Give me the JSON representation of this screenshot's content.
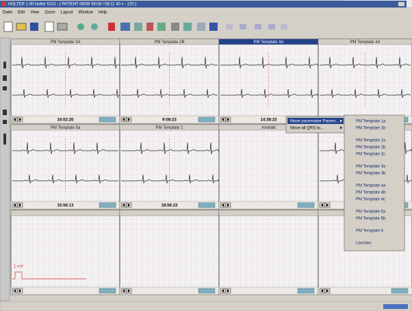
{
  "title_bar": "HOLTER 1.00 Holter ECG - [ PATIENT 08/08 09:08 / 08:11 40 s - 220 ]",
  "menu": [
    "Datei",
    "Edit",
    "View",
    "Zoom",
    "Layout",
    "Window",
    "Help"
  ],
  "selected_panel": 2,
  "panels": [
    {
      "title": "PM Template 3A",
      "time": "16:02:20"
    },
    {
      "title": "PM Template 2B",
      "time": "9:08:23"
    },
    {
      "title": "PM Template 3A",
      "time": "14:38:23"
    },
    {
      "title": "PM Template 4A"
    },
    {
      "title": "PM Template 5a",
      "time": "15:56:13"
    },
    {
      "title": "PM Template 1",
      "time": "18:56:23"
    },
    {
      "title": "Artefakt"
    }
  ],
  "calibration_label": "1 mV",
  "context_menu": [
    "Move pacemaker Pacem...",
    "Move all QRS to..."
  ],
  "submenu": [
    [
      "PM Template 1a",
      "PM Template 1b"
    ],
    [
      "PM Template 2a",
      "PM Template 2b",
      "PM Template 2c"
    ],
    [
      "PM Template 3a",
      "PM Template 3b"
    ],
    [
      "PM Template 4a",
      "PM Template 4b",
      "PM Template 4c"
    ],
    [
      "PM Template 5a",
      "PM Template 5b"
    ],
    [
      "PM Template 6"
    ],
    [
      "Löschen"
    ]
  ]
}
